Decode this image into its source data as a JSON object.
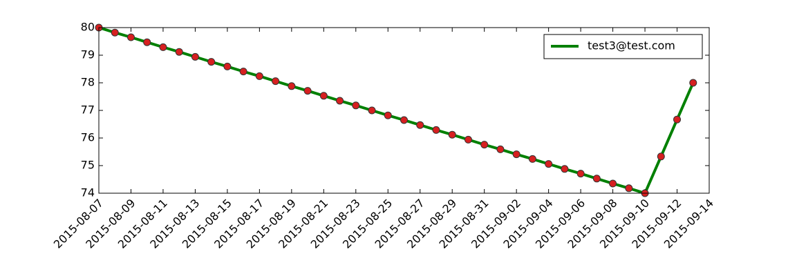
{
  "chart_data": {
    "type": "line",
    "x": [
      "2015-08-07",
      "2015-08-08",
      "2015-08-09",
      "2015-08-10",
      "2015-08-11",
      "2015-08-12",
      "2015-08-13",
      "2015-08-14",
      "2015-08-15",
      "2015-08-16",
      "2015-08-17",
      "2015-08-18",
      "2015-08-19",
      "2015-08-20",
      "2015-08-21",
      "2015-08-22",
      "2015-08-23",
      "2015-08-24",
      "2015-08-25",
      "2015-08-26",
      "2015-08-27",
      "2015-08-28",
      "2015-08-29",
      "2015-08-30",
      "2015-08-31",
      "2015-09-01",
      "2015-09-02",
      "2015-09-03",
      "2015-09-04",
      "2015-09-05",
      "2015-09-06",
      "2015-09-07",
      "2015-09-08",
      "2015-09-09",
      "2015-09-10",
      "2015-09-11",
      "2015-09-12",
      "2015-09-13"
    ],
    "series": [
      {
        "name": "test3@test.com",
        "color": "#008000",
        "marker_color": "#d62020",
        "values": [
          80,
          79.82,
          79.65,
          79.47,
          79.29,
          79.12,
          78.94,
          78.76,
          78.59,
          78.41,
          78.24,
          78.06,
          77.88,
          77.71,
          77.53,
          77.35,
          77.18,
          77.0,
          76.82,
          76.65,
          76.47,
          76.29,
          76.12,
          75.94,
          75.76,
          75.59,
          75.41,
          75.24,
          75.06,
          74.88,
          74.71,
          74.53,
          74.35,
          74.18,
          74,
          75.33,
          76.67,
          78
        ]
      }
    ],
    "xlim": [
      "2015-08-07",
      "2015-09-14"
    ],
    "xticks": [
      "2015-08-07",
      "2015-08-09",
      "2015-08-11",
      "2015-08-13",
      "2015-08-15",
      "2015-08-17",
      "2015-08-19",
      "2015-08-21",
      "2015-08-23",
      "2015-08-25",
      "2015-08-27",
      "2015-08-29",
      "2015-08-31",
      "2015-09-02",
      "2015-09-04",
      "2015-09-06",
      "2015-09-08",
      "2015-09-10",
      "2015-09-12",
      "2015-09-14"
    ],
    "ylim": [
      74,
      80
    ],
    "yticks": [
      74,
      75,
      76,
      77,
      78,
      79,
      80
    ],
    "legend": "upper right",
    "grid": false
  }
}
